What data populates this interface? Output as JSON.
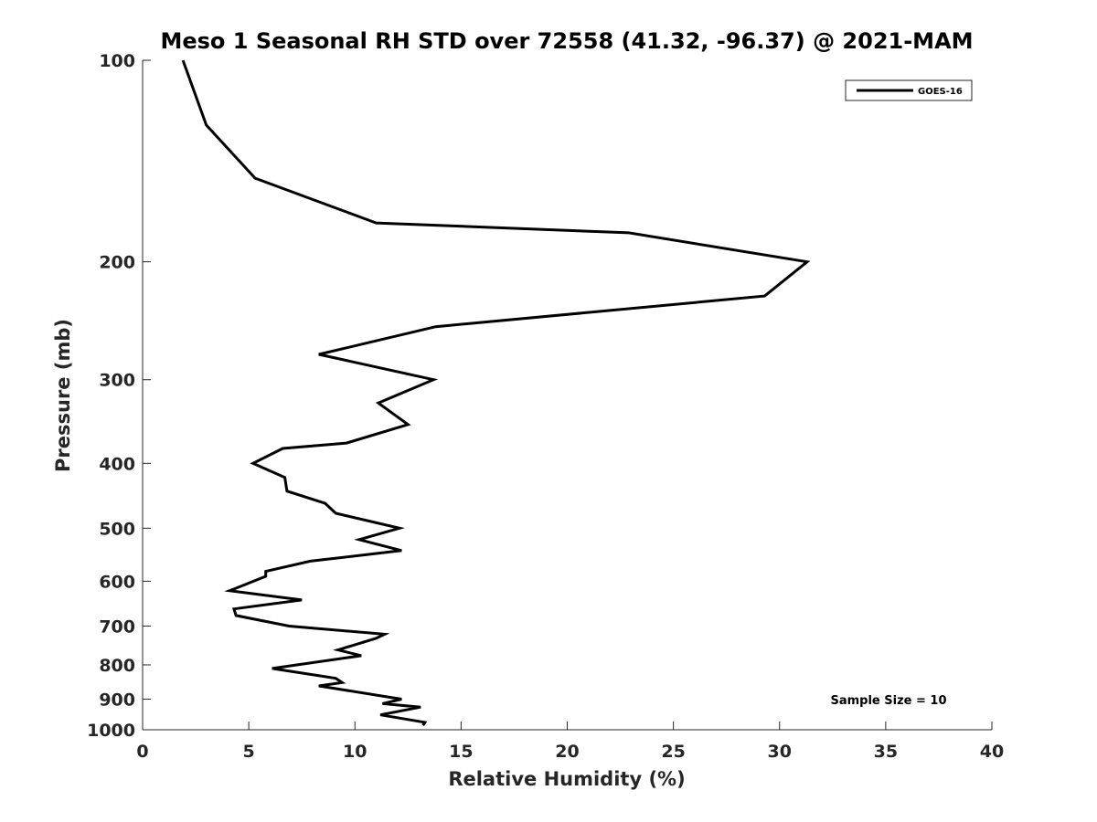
{
  "chart_data": {
    "type": "line",
    "title": "Meso 1 Seasonal RH STD over 72558 (41.32, -96.37) @ 2021-MAM",
    "xlabel": "Relative Humidity (%)",
    "ylabel": "Pressure (mb)",
    "xlim": [
      0,
      40
    ],
    "ylim": [
      100,
      1000
    ],
    "y_scale": "log",
    "y_reversed": true,
    "xticks": [
      0,
      5,
      10,
      15,
      20,
      25,
      30,
      35,
      40
    ],
    "xtick_labels": [
      "0",
      "5",
      "10",
      "15",
      "20",
      "25",
      "30",
      "35",
      "40"
    ],
    "yticks": [
      100,
      200,
      300,
      400,
      500,
      600,
      700,
      800,
      900,
      1000
    ],
    "ytick_labels": [
      "100",
      "200",
      "300",
      "400",
      "500",
      "600",
      "700",
      "800",
      "900",
      "1000"
    ],
    "grid": false,
    "legend_position": "top-right",
    "annotation": "Sample Size = 10",
    "series": [
      {
        "name": "GOES-16",
        "color": "#000000",
        "points": [
          [
            1.9,
            100
          ],
          [
            3.0,
            125
          ],
          [
            5.3,
            150
          ],
          [
            11.0,
            175
          ],
          [
            22.9,
            181
          ],
          [
            31.3,
            200
          ],
          [
            29.3,
            225
          ],
          [
            13.8,
            250
          ],
          [
            8.3,
            275
          ],
          [
            13.7,
            300
          ],
          [
            11.1,
            325
          ],
          [
            12.5,
            350
          ],
          [
            9.6,
            373
          ],
          [
            6.6,
            380
          ],
          [
            5.2,
            400
          ],
          [
            6.7,
            420
          ],
          [
            6.8,
            440
          ],
          [
            8.6,
            459
          ],
          [
            9.1,
            475
          ],
          [
            12.1,
            500
          ],
          [
            10.2,
            520
          ],
          [
            12.2,
            540
          ],
          [
            7.9,
            560
          ],
          [
            5.8,
            580
          ],
          [
            5.8,
            590
          ],
          [
            4.1,
            620
          ],
          [
            7.5,
            640
          ],
          [
            4.3,
            660
          ],
          [
            4.4,
            675
          ],
          [
            6.9,
            700
          ],
          [
            11.4,
            720
          ],
          [
            11.0,
            730
          ],
          [
            9.2,
            760
          ],
          [
            10.3,
            775
          ],
          [
            6.1,
            810
          ],
          [
            9.1,
            838
          ],
          [
            9.4,
            850
          ],
          [
            8.3,
            860
          ],
          [
            12.2,
            900
          ],
          [
            11.3,
            914
          ],
          [
            13.1,
            925
          ],
          [
            11.2,
            950
          ],
          [
            13.3,
            975
          ],
          [
            13.2,
            985
          ]
        ]
      }
    ]
  }
}
